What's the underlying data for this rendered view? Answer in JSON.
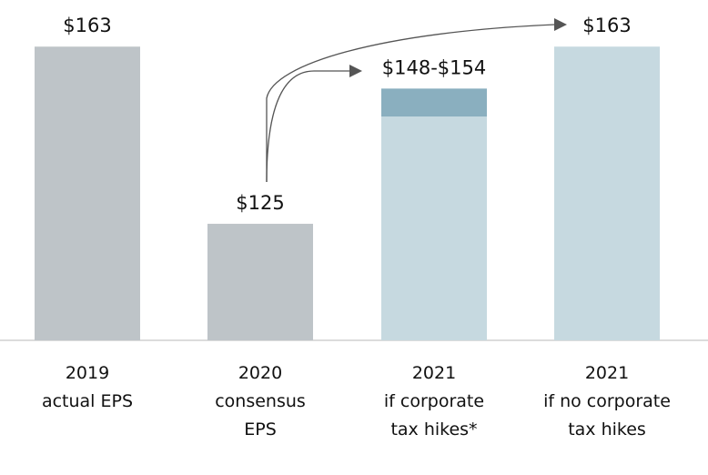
{
  "chart_data": {
    "type": "bar",
    "categories": [
      [
        "2019",
        "actual EPS"
      ],
      [
        "2020",
        "consensus",
        "EPS"
      ],
      [
        "2021",
        "if corporate",
        "tax hikes*"
      ],
      [
        "2021",
        "if no corporate",
        "tax hikes"
      ]
    ],
    "values": [
      163,
      125,
      [
        148,
        154
      ],
      163
    ],
    "data_labels": [
      "$163",
      "$125",
      "$148-$154",
      "$163"
    ],
    "ylim": [
      100,
      173
    ],
    "grid": false,
    "title": "",
    "xlabel": "",
    "ylabel": "",
    "colors": {
      "actual": "#bec4c8",
      "projected": "#c6d9e0",
      "range": "#8aafbf",
      "arrow": "#555555",
      "baseline": "#d0d0d0"
    }
  }
}
